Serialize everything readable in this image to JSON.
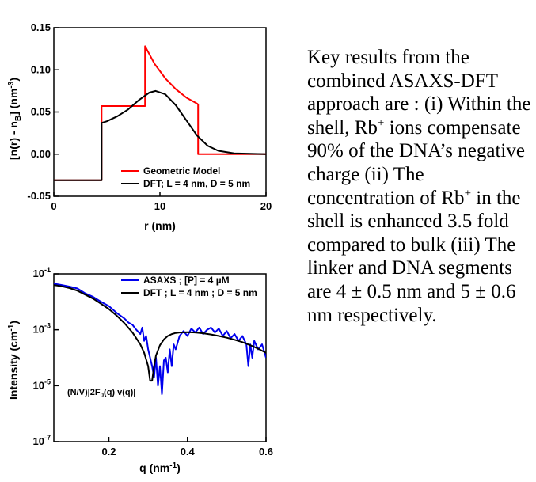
{
  "text_panel": {
    "parts": [
      "Key results from the combined ASAXS-DFT approach are : (i) Within the shell, Rb",
      "+",
      " ions compensate 90% of the DNA’s negative charge (ii) The concentration of Rb",
      "+",
      " in the shell is enhanced 3.5 fold compared to bulk (iii) The linker and DNA segments are 4 ± 0.5 nm and 5  ± 0.6  nm respectively."
    ]
  },
  "chart_data": [
    {
      "type": "line",
      "ylabel_parts": [
        "[n(r) - n",
        "B",
        "] (nm",
        "-3",
        ")"
      ],
      "xlabel": "r (nm)",
      "xlim": [
        0,
        20
      ],
      "ylim": [
        -0.05,
        0.15
      ],
      "xticks": [
        "0",
        "10",
        "20"
      ],
      "xtick_values": [
        0,
        10,
        20
      ],
      "yticks": [
        "-0.05",
        "0.00",
        "0.05",
        "0.10",
        "0.15"
      ],
      "ytick_values": [
        -0.05,
        0.0,
        0.05,
        0.1,
        0.15
      ],
      "grid": false,
      "legend_position": "bottom-right",
      "series": [
        {
          "name": "Geometric Model",
          "color": "#ff0000",
          "x": [
            0,
            4.5,
            4.5,
            8.6,
            8.6,
            9.5,
            10.5,
            11.5,
            12.5,
            13.5,
            13.6,
            13.6,
            20
          ],
          "y": [
            -0.031,
            -0.031,
            0.057,
            0.057,
            0.128,
            0.107,
            0.09,
            0.077,
            0.067,
            0.06,
            0.059,
            0.0,
            0.0
          ]
        },
        {
          "name": "DFT; L = 4 nm, D = 5 nm",
          "color": "#000000",
          "x": [
            0,
            4.5,
            4.5,
            5,
            6,
            7,
            8,
            9,
            9.6,
            10.5,
            11.5,
            12.5,
            13.5,
            14.5,
            15.5,
            17,
            20
          ],
          "y": [
            -0.031,
            -0.031,
            0.037,
            0.039,
            0.045,
            0.053,
            0.064,
            0.073,
            0.075,
            0.071,
            0.058,
            0.04,
            0.022,
            0.01,
            0.004,
            0.001,
            0.0
          ]
        }
      ]
    },
    {
      "type": "line",
      "ylabel_parts": [
        "Intensity (cm",
        "-1",
        ")"
      ],
      "xlabel_parts": [
        "q (nm",
        "-1",
        ")"
      ],
      "xlim": [
        0.06,
        0.6
      ],
      "ylim": [
        1e-07,
        0.1
      ],
      "yscale": "log",
      "xticks": [
        "0.2",
        "0.4",
        "0.6"
      ],
      "xtick_values": [
        0.2,
        0.4,
        0.6
      ],
      "ytick_exponents": [
        "-1",
        "-3",
        "-5",
        "-7"
      ],
      "ytick_values": [
        0.1,
        0.001,
        1e-05,
        1e-07
      ],
      "grid": false,
      "legend_position": "top-right",
      "annotation": "(N/V)|2F0(q) v(q)|",
      "annotation_parts": [
        "(N/V)|2F",
        "0",
        "(q) v(q)|"
      ],
      "series": [
        {
          "name": "ASAXS ; [P] = 4 µM",
          "color": "#0000ee",
          "x": [
            0.06,
            0.08,
            0.1,
            0.12,
            0.14,
            0.16,
            0.18,
            0.2,
            0.22,
            0.24,
            0.25,
            0.26,
            0.27,
            0.28,
            0.285,
            0.29,
            0.295,
            0.3,
            0.305,
            0.31,
            0.315,
            0.32,
            0.325,
            0.33,
            0.335,
            0.34,
            0.345,
            0.35,
            0.355,
            0.36,
            0.365,
            0.37,
            0.38,
            0.39,
            0.4,
            0.41,
            0.42,
            0.43,
            0.44,
            0.45,
            0.46,
            0.47,
            0.48,
            0.49,
            0.5,
            0.51,
            0.52,
            0.53,
            0.54,
            0.55,
            0.555,
            0.56,
            0.565,
            0.57,
            0.58,
            0.59,
            0.6
          ],
          "y": [
            0.045,
            0.04,
            0.035,
            0.03,
            0.02,
            0.015,
            0.01,
            0.007,
            0.004,
            0.0025,
            0.0018,
            0.0015,
            0.001,
            0.0007,
            0.0012,
            0.0004,
            0.0006,
            0.0002,
            0.0001,
            5e-05,
            2e-05,
            0.0001,
            1e-05,
            5e-05,
            5e-06,
            8e-05,
            0.0001,
            3e-05,
            0.0002,
            5e-05,
            0.0003,
            0.0002,
            0.0006,
            0.0009,
            0.0006,
            0.0011,
            0.0008,
            0.0012,
            0.0007,
            0.001,
            0.0012,
            0.0008,
            0.0011,
            0.0006,
            0.0009,
            0.0005,
            0.0007,
            0.0004,
            0.0006,
            0.0003,
            5e-05,
            0.0003,
            0.0001,
            0.0004,
            0.0002,
            0.0003,
            0.0001
          ]
        },
        {
          "name": "DFT ; L = 4 nm ; D = 5 nm",
          "color": "#000000",
          "x": [
            0.06,
            0.08,
            0.1,
            0.12,
            0.14,
            0.16,
            0.18,
            0.2,
            0.22,
            0.24,
            0.26,
            0.28,
            0.29,
            0.3,
            0.305,
            0.31,
            0.315,
            0.32,
            0.33,
            0.34,
            0.35,
            0.36,
            0.37,
            0.38,
            0.4,
            0.42,
            0.44,
            0.46,
            0.48,
            0.5,
            0.52,
            0.54,
            0.56,
            0.58,
            0.6
          ],
          "y": [
            0.04,
            0.036,
            0.031,
            0.025,
            0.018,
            0.013,
            0.0085,
            0.0055,
            0.0032,
            0.0017,
            0.0008,
            0.0003,
            0.00015,
            5e-05,
            1.5e-05,
            1.5e-05,
            5e-05,
            0.00012,
            0.00028,
            0.00045,
            0.0006,
            0.0007,
            0.00077,
            0.0008,
            0.00082,
            0.0008,
            0.00075,
            0.00068,
            0.0006,
            0.00052,
            0.00044,
            0.00036,
            0.00028,
            0.00021,
            0.00015
          ]
        }
      ]
    }
  ]
}
